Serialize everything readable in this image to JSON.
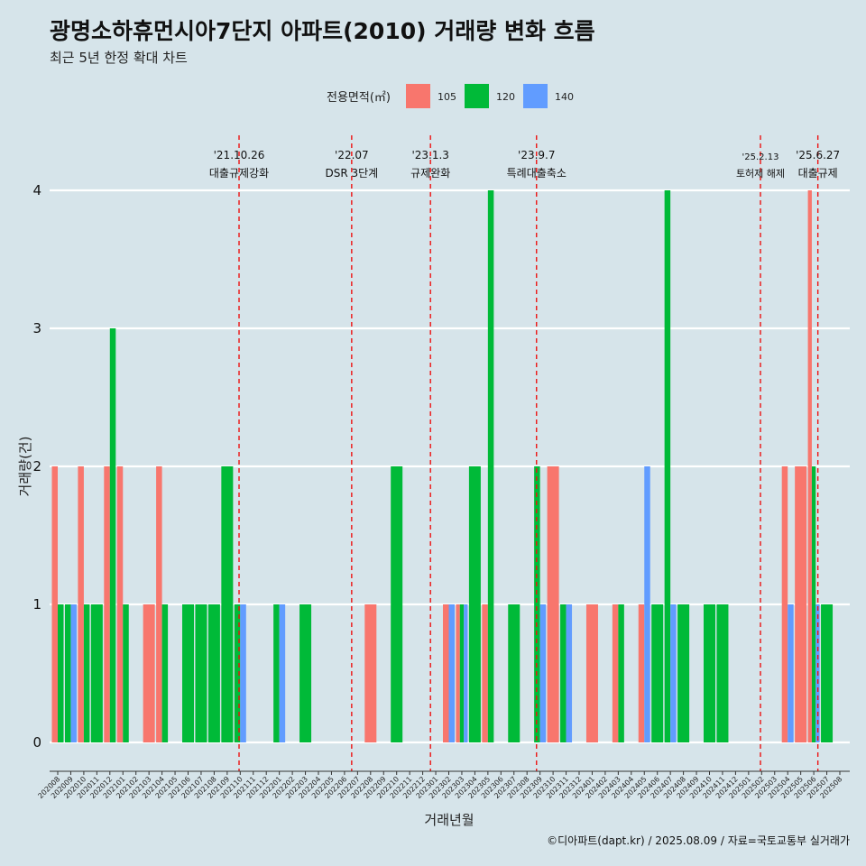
{
  "chart_data": {
    "type": "bar",
    "title": "광명소하휴먼시아7단지 아파트(2010) 거래량 변화 흐름",
    "subtitle": "최근 5년 한정 확대 차트",
    "xlabel": "거래년월",
    "ylabel": "거래량(건)",
    "ylim": [
      0,
      4
    ],
    "yticks": [
      0,
      1,
      2,
      3,
      4
    ],
    "grid": true,
    "legend": {
      "title": "전용면적(㎡)",
      "position": "top",
      "entries": [
        {
          "name": "105",
          "color": "#f8766d"
        },
        {
          "name": "120",
          "color": "#00ba38"
        },
        {
          "name": "140",
          "color": "#619cff"
        }
      ]
    },
    "categories": [
      "202008",
      "202009",
      "202010",
      "202011",
      "202012",
      "202101",
      "202102",
      "202103",
      "202104",
      "202105",
      "202106",
      "202107",
      "202108",
      "202109",
      "202110",
      "202111",
      "202112",
      "202201",
      "202202",
      "202203",
      "202204",
      "202205",
      "202206",
      "202207",
      "202208",
      "202209",
      "202210",
      "202211",
      "202212",
      "202301",
      "202302",
      "202303",
      "202304",
      "202305",
      "202306",
      "202307",
      "202308",
      "202309",
      "202310",
      "202311",
      "202312",
      "202401",
      "202402",
      "202403",
      "202404",
      "202405",
      "202406",
      "202407",
      "202408",
      "202409",
      "202410",
      "202411",
      "202412",
      "202501",
      "202502",
      "202503",
      "202504",
      "202505",
      "202506",
      "202507",
      "202508"
    ],
    "series": [
      {
        "name": "105",
        "values": [
          2,
          0,
          2,
          0,
          2,
          2,
          0,
          1,
          2,
          0,
          0,
          0,
          0,
          0,
          0,
          0,
          0,
          0,
          0,
          0,
          0,
          0,
          0,
          0,
          1,
          0,
          0,
          0,
          0,
          0,
          1,
          1,
          0,
          1,
          0,
          0,
          0,
          0,
          2,
          0,
          0,
          1,
          0,
          1,
          0,
          1,
          0,
          0,
          0,
          0,
          0,
          0,
          0,
          0,
          0,
          0,
          2,
          2,
          4,
          0,
          0
        ]
      },
      {
        "name": "120",
        "values": [
          1,
          1,
          1,
          1,
          3,
          1,
          0,
          0,
          1,
          0,
          1,
          1,
          1,
          2,
          1,
          0,
          0,
          1,
          0,
          1,
          0,
          0,
          0,
          0,
          0,
          0,
          2,
          0,
          0,
          0,
          0,
          1,
          2,
          4,
          0,
          1,
          0,
          2,
          0,
          1,
          0,
          0,
          0,
          1,
          0,
          0,
          1,
          4,
          1,
          0,
          1,
          1,
          0,
          0,
          0,
          0,
          0,
          0,
          2,
          1,
          0
        ]
      },
      {
        "name": "140",
        "values": [
          0,
          1,
          0,
          0,
          0,
          0,
          0,
          0,
          0,
          0,
          0,
          0,
          0,
          0,
          1,
          0,
          0,
          1,
          0,
          0,
          0,
          0,
          0,
          0,
          0,
          0,
          0,
          0,
          0,
          0,
          1,
          1,
          0,
          0,
          0,
          0,
          0,
          1,
          0,
          1,
          0,
          0,
          0,
          0,
          0,
          2,
          0,
          1,
          0,
          0,
          0,
          0,
          0,
          0,
          0,
          0,
          1,
          0,
          1,
          0,
          0
        ]
      }
    ],
    "events": [
      {
        "date": "'21.10.26",
        "label": "대출규제강화",
        "category": "202110",
        "offset": 0.4
      },
      {
        "date": "'22.07",
        "label": "DSR 3단계",
        "category": "202207",
        "offset": 0.0
      },
      {
        "date": "'23.1.3",
        "label": "규제완화",
        "category": "202301",
        "offset": 0.05
      },
      {
        "date": "'23.9.7",
        "label": "특례대출축소",
        "category": "202309",
        "offset": 0.2
      },
      {
        "date": "'25.2.13",
        "label": "토허제 해제",
        "category": "202502",
        "offset": 0.4,
        "small": true
      },
      {
        "date": "'25.6.27",
        "label": "대출규제",
        "category": "202506",
        "offset": 0.85
      }
    ]
  },
  "caption": "©디아파트(dapt.kr) / 2025.08.09 / 자료=국토교통부 실거래가"
}
